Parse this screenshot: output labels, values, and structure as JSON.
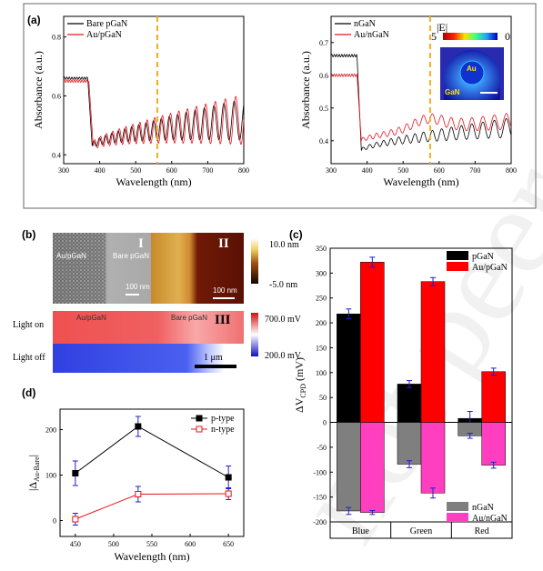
{
  "panel_labels": {
    "a": "(a)",
    "b": "(b)",
    "c": "(c)",
    "d": "(d)"
  },
  "watermark": "not peer reviewed",
  "colors": {
    "black": "#000000",
    "red": "#e8141c",
    "gray": "#7f7f7f",
    "magenta": "#ff3fbf",
    "dashed": "#f0b020",
    "error": "#2020c8"
  },
  "chart_data": [
    {
      "id": "a-left",
      "type": "line",
      "xlabel": "Wavelength (nm)",
      "ylabel": "Absorbance (a.u.)",
      "xlim": [
        300,
        800
      ],
      "ylim": [
        0.37,
        0.87
      ],
      "xticks": [
        300,
        400,
        500,
        600,
        700,
        800
      ],
      "yticks": [
        0.4,
        0.6,
        0.8
      ],
      "ytick_labels": [
        "0.4",
        "0.6",
        "0.8"
      ],
      "vline": 560,
      "series": [
        {
          "name": "Bare pGaN",
          "color": "#000000",
          "model": {
            "plateau": 0.66,
            "edge": 375,
            "drop_to": 0.43,
            "rise_to": 0.52,
            "amp_start": 0.01,
            "amp_end": 0.07,
            "period_start": 16,
            "period_end": 28
          }
        },
        {
          "name": "Au/pGaN",
          "color": "#e8141c",
          "model": {
            "plateau": 0.65,
            "edge": 378,
            "drop_to": 0.43,
            "rise_to": 0.52,
            "amp_start": 0.015,
            "amp_end": 0.085,
            "period_start": 16,
            "period_end": 28
          }
        }
      ]
    },
    {
      "id": "a-right",
      "type": "line",
      "xlabel": "Wavelength (nm)",
      "ylabel": "Absorbance (a.u.)",
      "xlim": [
        300,
        800
      ],
      "ylim": [
        0.33,
        0.78
      ],
      "xticks": [
        300,
        400,
        500,
        600,
        700,
        800
      ],
      "yticks": [
        0.4,
        0.5,
        0.6,
        0.7
      ],
      "ytick_labels": [
        "0.4",
        "0.5",
        "0.6",
        "0.7"
      ],
      "vline": 575,
      "series": [
        {
          "name": "nGaN",
          "color": "#000000",
          "model": {
            "plateau": 0.66,
            "edge": 380,
            "drop_to": 0.37,
            "rise_to": 0.44,
            "amp_start": 0.005,
            "amp_end": 0.03,
            "period_start": 18,
            "period_end": 32
          }
        },
        {
          "name": "Au/nGaN",
          "color": "#e8141c",
          "model": {
            "plateau": 0.6,
            "edge": 380,
            "drop_to": 0.4,
            "rise_to": 0.46,
            "bump": 0.03,
            "amp_start": 0.006,
            "amp_end": 0.025,
            "period_start": 18,
            "period_end": 32
          }
        }
      ],
      "inset": {
        "colorbar_label": "|E|",
        "max_label": "5",
        "min_label": "0",
        "au_label": "Au",
        "gan_label": "GaN"
      }
    },
    {
      "id": "c",
      "type": "bar",
      "ylabel": "ΔV_CPD (mV)",
      "ylim": [
        -200,
        350
      ],
      "yticks": [
        -200,
        -150,
        -100,
        -50,
        0,
        50,
        100,
        150,
        200,
        250,
        300,
        350
      ],
      "categories": [
        "Blue",
        "Green",
        "Red"
      ],
      "series": [
        {
          "name": "pGaN",
          "color": "#000000",
          "values": [
            218,
            77,
            8
          ],
          "errors": [
            10,
            7,
            14
          ]
        },
        {
          "name": "Au/pGaN",
          "color": "#ff0000",
          "values": [
            322,
            283,
            102
          ],
          "errors": [
            10,
            8,
            7
          ]
        },
        {
          "name": "nGaN",
          "color": "#7f7f7f",
          "values": [
            -178,
            -84,
            -27
          ],
          "errors": [
            7,
            7,
            5
          ]
        },
        {
          "name": "Au/nGaN",
          "color": "#ff3fbf",
          "values": [
            -181,
            -142,
            -86
          ],
          "errors": [
            4,
            10,
            6
          ]
        }
      ]
    },
    {
      "id": "d",
      "type": "line",
      "xlabel": "Wavelength (nm)",
      "ylabel": "|Δ_Au-Bare|",
      "xlim": [
        430,
        670
      ],
      "ylim": [
        -35,
        245
      ],
      "xticks": [
        450,
        500,
        550,
        600,
        650
      ],
      "yticks": [
        0,
        100,
        200
      ],
      "series": [
        {
          "name": "p-type",
          "color": "#000000",
          "x": [
            450,
            532,
            650
          ],
          "values": [
            104,
            207,
            95
          ],
          "errors": [
            27,
            22,
            25
          ]
        },
        {
          "name": "n-type",
          "color": "#e8141c",
          "x": [
            450,
            532,
            650
          ],
          "values": [
            3,
            58,
            59
          ],
          "errors": [
            13,
            17,
            13
          ]
        }
      ]
    }
  ],
  "panel_b": {
    "sem_left": "Au/pGaN",
    "sem_right": "Bare pGaN",
    "label_I": "I",
    "label_II": "II",
    "label_III": "III",
    "scale_sem": "100 nm",
    "scale_afm": "100 nm",
    "height_max": "10.0 nm",
    "height_min": "-5.0 nm",
    "kpfm_left": "Au/pGaN",
    "kpfm_right": "Bare pGaN",
    "light_on": "Light on",
    "light_off": "Light off",
    "potential_max": "700.0 mV",
    "potential_min": "200.0 mV",
    "scale_kpfm": "1 μm"
  }
}
